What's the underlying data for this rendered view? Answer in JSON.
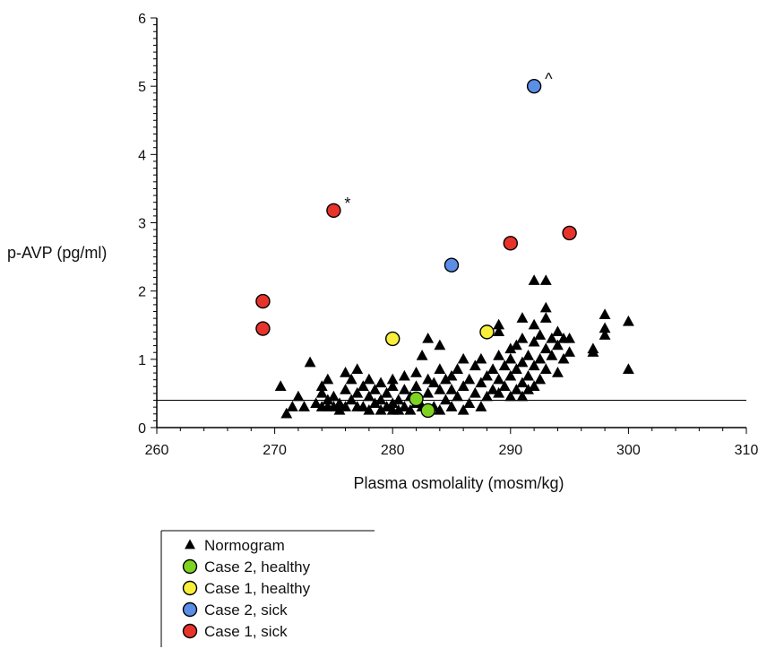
{
  "chart_data": {
    "type": "scatter",
    "title": "",
    "xlabel": "Plasma osmolality (mosm/kg)",
    "ylabel": "p-AVP (pg/ml)",
    "xlim": [
      260,
      310
    ],
    "ylim": [
      0,
      6
    ],
    "x_ticks": [
      260,
      270,
      280,
      290,
      300,
      310
    ],
    "y_ticks": [
      0,
      1,
      2,
      3,
      4,
      5,
      6
    ],
    "reference_line_y": 0.4,
    "legend_position": "bottom-left, below plot",
    "series": [
      {
        "name": "Normogram",
        "marker": "triangle",
        "color": "#000000",
        "points": [
          [
            270.5,
            0.6
          ],
          [
            271.5,
            0.3
          ],
          [
            271.0,
            0.2
          ],
          [
            272.0,
            0.45
          ],
          [
            272.5,
            0.3
          ],
          [
            273.0,
            0.95
          ],
          [
            273.5,
            0.35
          ],
          [
            274.0,
            0.3
          ],
          [
            274.0,
            0.6
          ],
          [
            274.0,
            0.5
          ],
          [
            274.5,
            0.3
          ],
          [
            274.5,
            0.4
          ],
          [
            274.5,
            0.7
          ],
          [
            275.0,
            0.3
          ],
          [
            275.0,
            0.45
          ],
          [
            275.5,
            0.25
          ],
          [
            275.5,
            0.35
          ],
          [
            276.0,
            0.55
          ],
          [
            276.0,
            0.8
          ],
          [
            276.0,
            0.3
          ],
          [
            276.5,
            0.7
          ],
          [
            276.5,
            0.4
          ],
          [
            277.0,
            0.5
          ],
          [
            277.0,
            0.3
          ],
          [
            277.0,
            0.85
          ],
          [
            277.5,
            0.6
          ],
          [
            277.5,
            0.3
          ],
          [
            278.0,
            0.45
          ],
          [
            278.0,
            0.7
          ],
          [
            278.0,
            0.25
          ],
          [
            278.5,
            0.35
          ],
          [
            278.5,
            0.55
          ],
          [
            279.0,
            0.25
          ],
          [
            279.0,
            0.65
          ],
          [
            279.0,
            0.4
          ],
          [
            279.5,
            0.3
          ],
          [
            279.5,
            0.5
          ],
          [
            280.0,
            0.25
          ],
          [
            280.0,
            0.35
          ],
          [
            280.0,
            0.6
          ],
          [
            280.0,
            0.7
          ],
          [
            280.5,
            0.4
          ],
          [
            280.5,
            0.25
          ],
          [
            281.0,
            0.55
          ],
          [
            281.0,
            0.3
          ],
          [
            281.0,
            0.75
          ],
          [
            281.5,
            0.45
          ],
          [
            281.5,
            0.25
          ],
          [
            282.0,
            0.6
          ],
          [
            282.0,
            0.35
          ],
          [
            282.0,
            0.8
          ],
          [
            282.5,
            0.3
          ],
          [
            282.5,
            1.05
          ],
          [
            283.0,
            0.5
          ],
          [
            283.0,
            1.3
          ],
          [
            283.0,
            0.7
          ],
          [
            283.5,
            0.3
          ],
          [
            283.5,
            0.65
          ],
          [
            284.0,
            0.25
          ],
          [
            284.0,
            0.55
          ],
          [
            284.0,
            0.85
          ],
          [
            284.0,
            1.2
          ],
          [
            284.5,
            0.4
          ],
          [
            284.5,
            0.7
          ],
          [
            285.0,
            0.3
          ],
          [
            285.0,
            0.55
          ],
          [
            285.0,
            0.75
          ],
          [
            285.5,
            0.45
          ],
          [
            285.5,
            0.85
          ],
          [
            286.0,
            0.25
          ],
          [
            286.0,
            0.6
          ],
          [
            286.0,
            1.0
          ],
          [
            286.5,
            0.35
          ],
          [
            286.5,
            0.7
          ],
          [
            287.0,
            0.5
          ],
          [
            287.0,
            0.9
          ],
          [
            287.5,
            0.3
          ],
          [
            287.5,
            0.65
          ],
          [
            287.5,
            1.0
          ],
          [
            288.0,
            0.45
          ],
          [
            288.0,
            0.75
          ],
          [
            288.5,
            0.55
          ],
          [
            288.5,
            0.85
          ],
          [
            289.0,
            0.5
          ],
          [
            289.0,
            0.7
          ],
          [
            289.0,
            1.05
          ],
          [
            289.0,
            1.4
          ],
          [
            289.0,
            1.5
          ],
          [
            289.5,
            0.6
          ],
          [
            289.5,
            0.9
          ],
          [
            290.0,
            0.45
          ],
          [
            290.0,
            0.75
          ],
          [
            290.0,
            1.0
          ],
          [
            290.0,
            1.15
          ],
          [
            290.5,
            0.55
          ],
          [
            290.5,
            0.85
          ],
          [
            290.5,
            1.2
          ],
          [
            291.0,
            0.45
          ],
          [
            291.0,
            0.65
          ],
          [
            291.0,
            0.95
          ],
          [
            291.0,
            1.3
          ],
          [
            291.0,
            1.6
          ],
          [
            291.5,
            0.75
          ],
          [
            291.5,
            1.05
          ],
          [
            291.5,
            0.55
          ],
          [
            292.0,
            0.6
          ],
          [
            292.0,
            0.9
          ],
          [
            292.0,
            1.25
          ],
          [
            292.0,
            1.5
          ],
          [
            292.0,
            2.15
          ],
          [
            292.5,
            0.7
          ],
          [
            292.5,
            1.0
          ],
          [
            292.5,
            1.35
          ],
          [
            293.0,
            0.85
          ],
          [
            293.0,
            1.15
          ],
          [
            293.0,
            1.75
          ],
          [
            293.0,
            2.15
          ],
          [
            293.0,
            1.6
          ],
          [
            293.5,
            1.05
          ],
          [
            293.5,
            1.3
          ],
          [
            294.0,
            0.8
          ],
          [
            294.0,
            1.2
          ],
          [
            294.0,
            1.4
          ],
          [
            294.5,
            1.0
          ],
          [
            294.5,
            1.3
          ],
          [
            295.0,
            1.1
          ],
          [
            295.0,
            1.3
          ],
          [
            297.0,
            1.1
          ],
          [
            297.0,
            1.15
          ],
          [
            298.0,
            1.35
          ],
          [
            298.0,
            1.45
          ],
          [
            298.0,
            1.65
          ],
          [
            300.0,
            1.55
          ],
          [
            300.0,
            0.85
          ]
        ]
      },
      {
        "name": "Case 2, healthy",
        "marker": "circle",
        "color": "#7ed321",
        "points": [
          [
            282.0,
            0.42
          ],
          [
            283.0,
            0.25
          ]
        ]
      },
      {
        "name": "Case 1, healthy",
        "marker": "circle",
        "color": "#f7ef3a",
        "points": [
          [
            280.0,
            1.3
          ],
          [
            288.0,
            1.4
          ]
        ]
      },
      {
        "name": "Case 2, sick",
        "marker": "circle",
        "color": "#5b8ee6",
        "points": [
          [
            285.0,
            2.38
          ],
          [
            292.0,
            5.0
          ]
        ]
      },
      {
        "name": "Case 1, sick",
        "marker": "circle",
        "color": "#e8332a",
        "points": [
          [
            269.0,
            1.85
          ],
          [
            269.0,
            1.45
          ],
          [
            275.0,
            3.18
          ],
          [
            290.0,
            2.7
          ],
          [
            295.0,
            2.85
          ]
        ]
      }
    ],
    "annotations": [
      {
        "text": "*",
        "x": 275.0,
        "y": 3.18
      },
      {
        "text": "^",
        "x": 292.0,
        "y": 5.0
      }
    ]
  }
}
